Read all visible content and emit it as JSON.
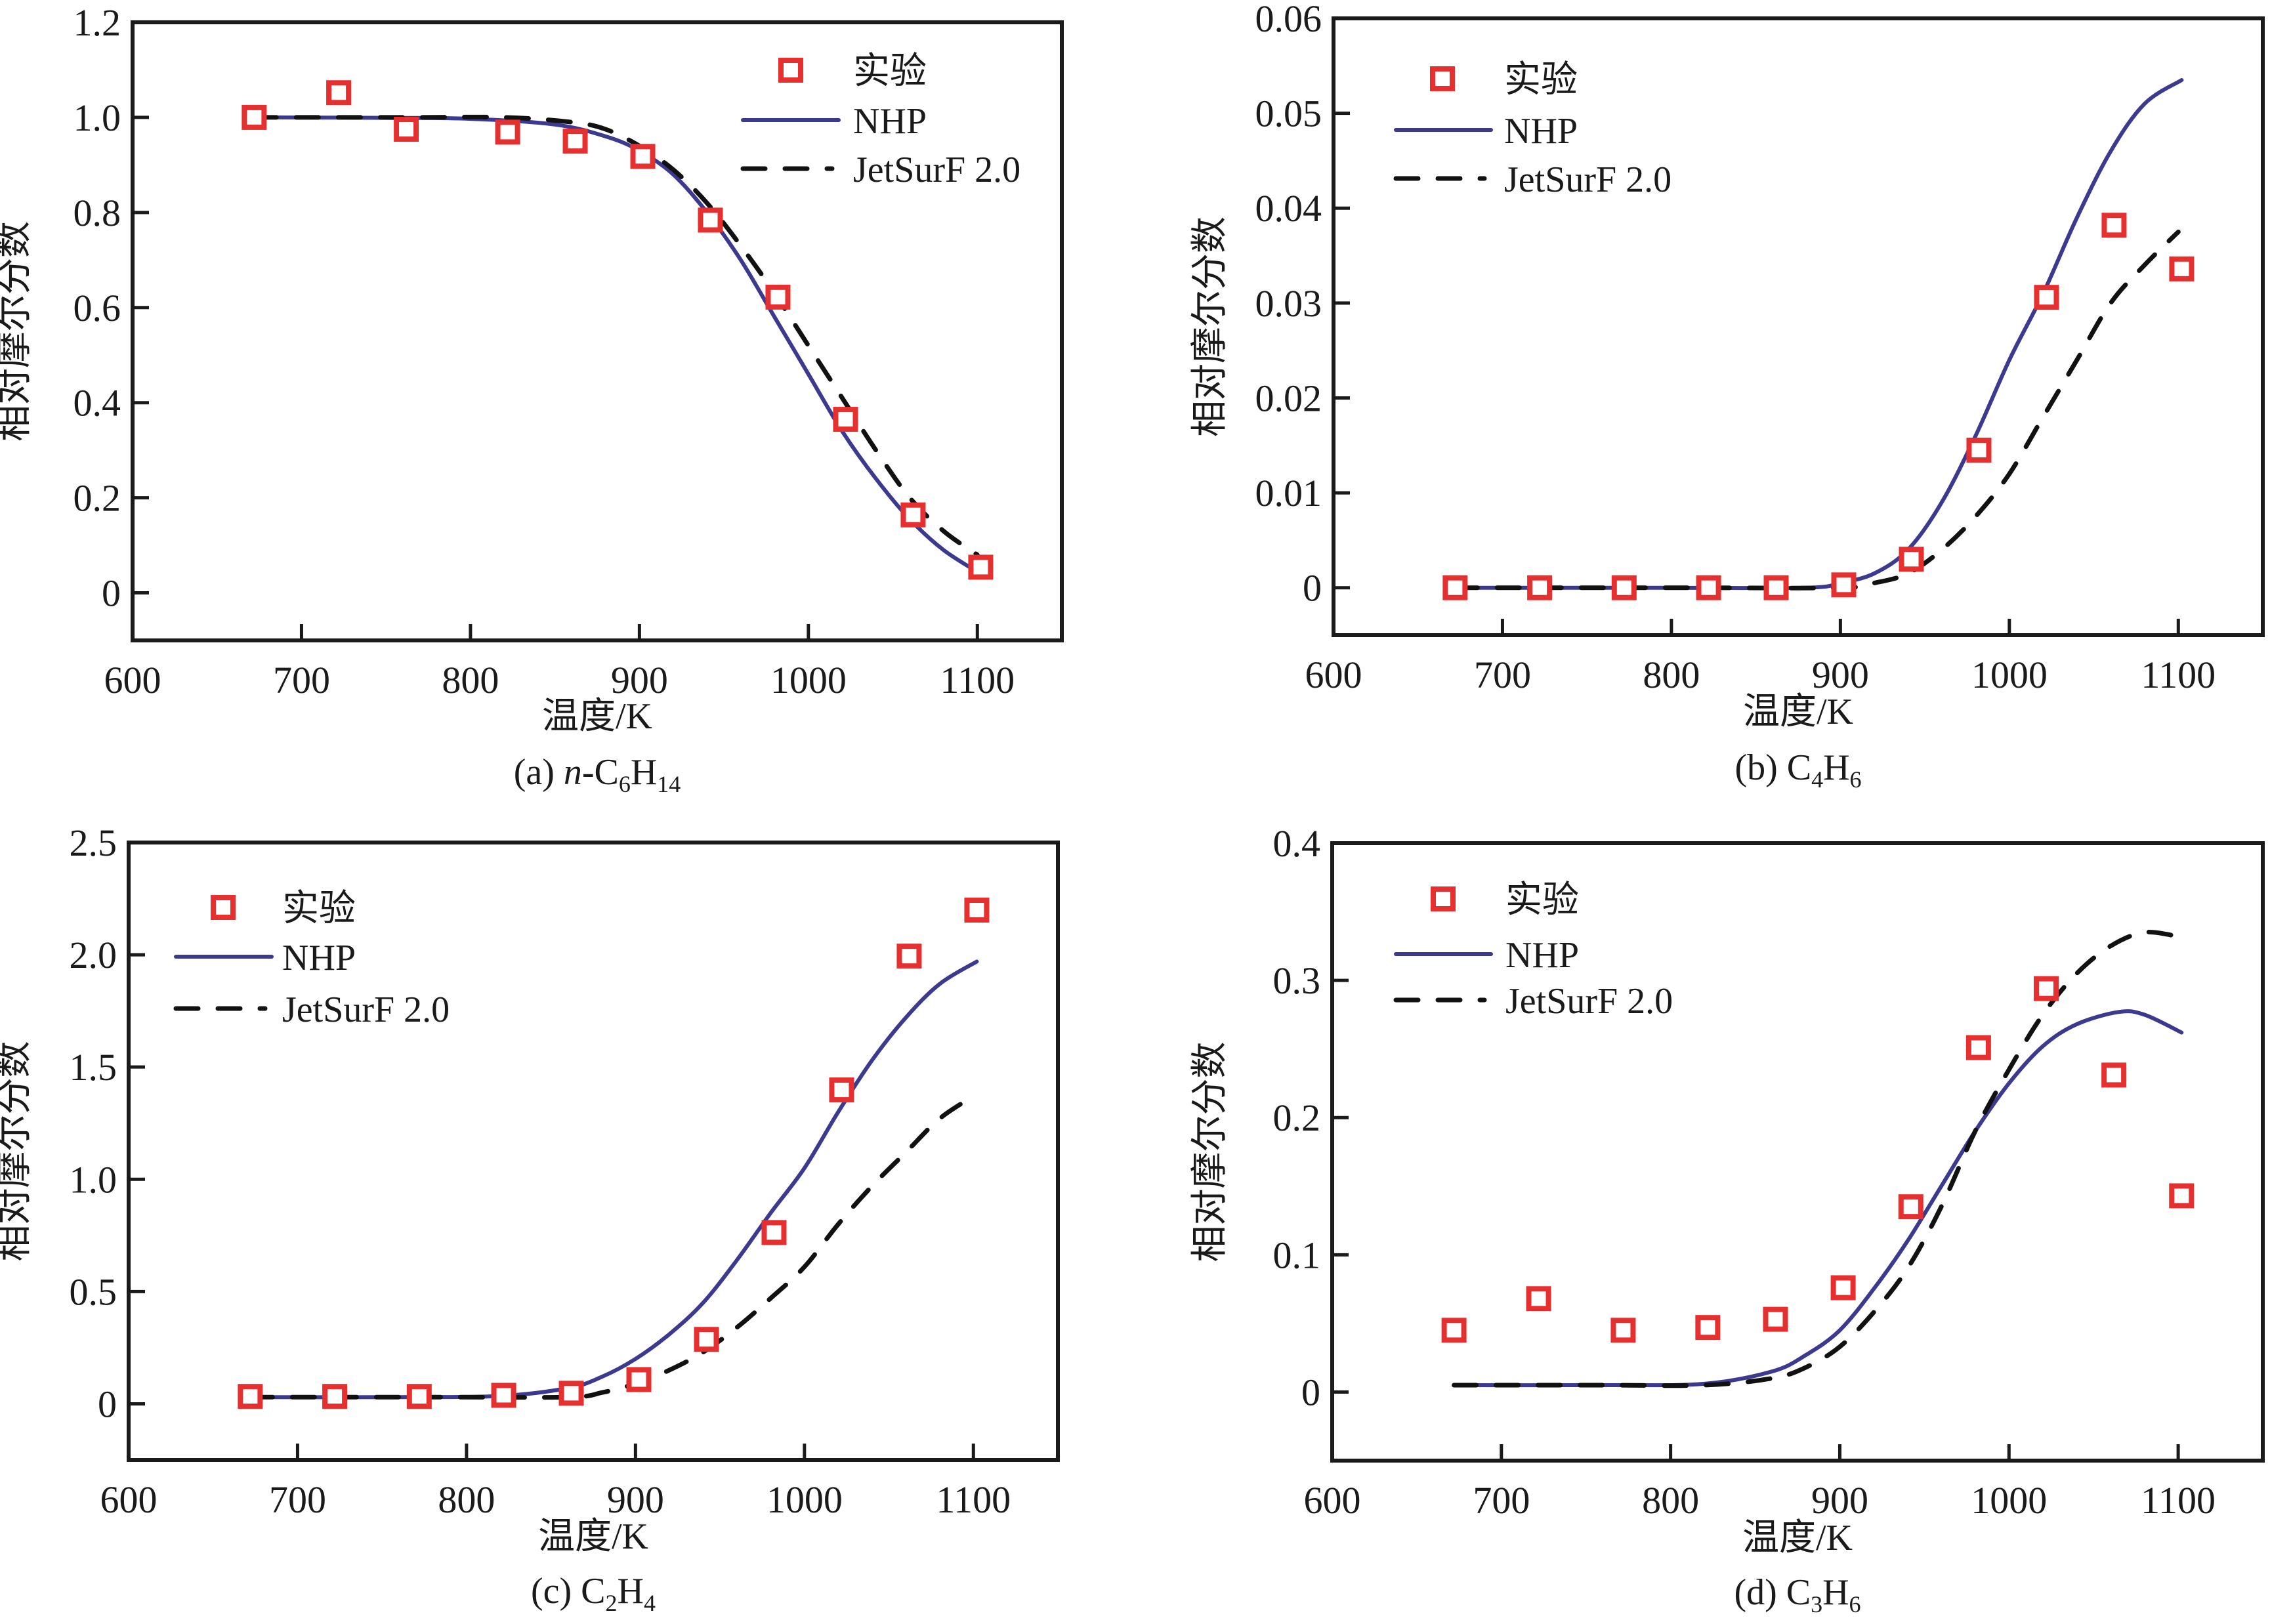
{
  "figure": {
    "colors": {
      "experiment": "#e63030",
      "nhp": "#3b3a8f",
      "jetsurf": "#111111"
    }
  },
  "chart_data": [
    {
      "id": "a",
      "type": "line",
      "caption": {
        "prefix": "(a) ",
        "italic": "n",
        "formula": [
          [
            "-C",
            ""
          ],
          [
            "",
            "6"
          ],
          [
            "H",
            ""
          ],
          [
            "",
            "14"
          ]
        ]
      },
      "xlabel": "温度/K",
      "ylabel": "相对摩尔分数",
      "xlim": [
        600,
        1150
      ],
      "ylim": [
        -0.1,
        1.2
      ],
      "xticks": [
        600,
        700,
        800,
        900,
        1000,
        1100
      ],
      "yticks": [
        0,
        0.2,
        0.4,
        0.6,
        0.8,
        1.0,
        1.2
      ],
      "ytick_labels": [
        "0",
        "0.2",
        "0.4",
        "0.6",
        "0.8",
        "1.0",
        "1.2"
      ],
      "grid": false,
      "legend": {
        "position": "top-right",
        "entries": [
          "实验",
          "NHP",
          "JetSurF 2.0"
        ]
      },
      "series": [
        {
          "name": "实验",
          "kind": "scatter",
          "x": [
            672,
            722,
            762,
            822,
            862,
            902,
            942,
            982,
            1022,
            1062,
            1102
          ],
          "y": [
            1.0,
            1.052,
            0.975,
            0.969,
            0.95,
            0.918,
            0.784,
            0.622,
            0.365,
            0.164,
            0.054
          ]
        },
        {
          "name": "NHP",
          "kind": "line",
          "x": [
            672,
            750,
            800,
            850,
            880,
            900,
            920,
            940,
            960,
            980,
            1000,
            1020,
            1040,
            1060,
            1080,
            1102
          ],
          "y": [
            1.0,
            0.999,
            0.997,
            0.985,
            0.96,
            0.93,
            0.88,
            0.8,
            0.7,
            0.58,
            0.46,
            0.34,
            0.24,
            0.155,
            0.09,
            0.04
          ]
        },
        {
          "name": "JetSurF 2.0",
          "kind": "dashed",
          "x": [
            672,
            760,
            820,
            860,
            880,
            900,
            920,
            940,
            960,
            980,
            1000,
            1020,
            1040,
            1060,
            1080,
            1100
          ],
          "y": [
            1.0,
            1.0,
            1.0,
            0.99,
            0.975,
            0.94,
            0.89,
            0.82,
            0.73,
            0.63,
            0.52,
            0.41,
            0.3,
            0.2,
            0.13,
            0.08
          ]
        }
      ]
    },
    {
      "id": "b",
      "type": "line",
      "caption": {
        "prefix": "(b) ",
        "italic": "",
        "formula": [
          [
            "C",
            ""
          ],
          [
            "",
            "4"
          ],
          [
            "H",
            ""
          ],
          [
            "",
            "6"
          ]
        ]
      },
      "xlabel": "温度/K",
      "ylabel": "相对摩尔分数",
      "xlim": [
        600,
        1150
      ],
      "ylim": [
        -0.005,
        0.06
      ],
      "xticks": [
        600,
        700,
        800,
        900,
        1000,
        1100
      ],
      "yticks": [
        0,
        0.01,
        0.02,
        0.03,
        0.04,
        0.05,
        0.06
      ],
      "ytick_labels": [
        "0",
        "0.01",
        "0.02",
        "0.03",
        "0.04",
        "0.05",
        "0.06"
      ],
      "grid": false,
      "legend": {
        "position": "top-left",
        "entries": [
          "实验",
          "NHP",
          "JetSurF 2.0"
        ]
      },
      "series": [
        {
          "name": "实验",
          "kind": "scatter",
          "x": [
            672,
            722,
            772,
            822,
            862,
            902,
            942,
            982,
            1022,
            1062,
            1102
          ],
          "y": [
            0,
            0,
            0,
            0,
            0,
            0.0003,
            0.003,
            0.0145,
            0.0306,
            0.0382,
            0.0336
          ]
        },
        {
          "name": "NHP",
          "kind": "line",
          "x": [
            672,
            800,
            880,
            900,
            920,
            940,
            960,
            980,
            1000,
            1020,
            1040,
            1060,
            1080,
            1102
          ],
          "y": [
            0,
            0,
            0,
            0.0005,
            0.0015,
            0.004,
            0.009,
            0.016,
            0.024,
            0.031,
            0.039,
            0.046,
            0.051,
            0.0535
          ]
        },
        {
          "name": "JetSurF 2.0",
          "kind": "dashed",
          "x": [
            672,
            800,
            900,
            920,
            940,
            960,
            980,
            1000,
            1020,
            1040,
            1060,
            1080,
            1100
          ],
          "y": [
            0,
            0,
            0,
            0.0005,
            0.0015,
            0.004,
            0.0075,
            0.012,
            0.018,
            0.024,
            0.03,
            0.034,
            0.0375
          ]
        }
      ]
    },
    {
      "id": "c",
      "type": "line",
      "caption": {
        "prefix": "(c) ",
        "italic": "",
        "formula": [
          [
            "C",
            ""
          ],
          [
            "",
            "2"
          ],
          [
            "H",
            ""
          ],
          [
            "",
            "4"
          ]
        ]
      },
      "xlabel": "温度/K",
      "ylabel": "相对摩尔分数",
      "xlim": [
        600,
        1150
      ],
      "ylim": [
        -0.25,
        2.5
      ],
      "xticks": [
        600,
        700,
        800,
        900,
        1000,
        1100
      ],
      "yticks": [
        0,
        0.5,
        1.0,
        1.5,
        2.0,
        2.5
      ],
      "ytick_labels": [
        "0",
        "0.5",
        "1.0",
        "1.5",
        "2.0",
        "2.5"
      ],
      "grid": false,
      "legend": {
        "position": "top-left",
        "entries": [
          "实验",
          "NHP",
          "JetSurF 2.0"
        ]
      },
      "series": [
        {
          "name": "实验",
          "kind": "scatter",
          "x": [
            672,
            722,
            772,
            822,
            862,
            902,
            942,
            982,
            1022,
            1062,
            1102
          ],
          "y": [
            0.033,
            0.033,
            0.033,
            0.038,
            0.047,
            0.108,
            0.287,
            0.763,
            1.398,
            1.994,
            2.199
          ]
        },
        {
          "name": "NHP",
          "kind": "line",
          "x": [
            672,
            760,
            820,
            860,
            880,
            900,
            920,
            940,
            960,
            980,
            1000,
            1020,
            1040,
            1060,
            1080,
            1102
          ],
          "y": [
            0.03,
            0.03,
            0.035,
            0.07,
            0.12,
            0.2,
            0.31,
            0.45,
            0.64,
            0.85,
            1.05,
            1.3,
            1.53,
            1.72,
            1.87,
            1.97
          ]
        },
        {
          "name": "JetSurF 2.0",
          "kind": "dashed",
          "x": [
            672,
            780,
            860,
            880,
            900,
            920,
            940,
            960,
            980,
            1000,
            1020,
            1040,
            1060,
            1080,
            1100
          ],
          "y": [
            0.03,
            0.03,
            0.03,
            0.05,
            0.09,
            0.15,
            0.23,
            0.34,
            0.47,
            0.61,
            0.8,
            0.97,
            1.12,
            1.27,
            1.37
          ]
        }
      ]
    },
    {
      "id": "d",
      "type": "line",
      "caption": {
        "prefix": "(d) ",
        "italic": "",
        "formula": [
          [
            "C",
            ""
          ],
          [
            "",
            "3"
          ],
          [
            "H",
            ""
          ],
          [
            "",
            "6"
          ]
        ]
      },
      "xlabel": "温度/K",
      "ylabel": "相对摩尔分数",
      "xlim": [
        600,
        1150
      ],
      "ylim": [
        -0.05,
        0.4
      ],
      "xticks": [
        600,
        700,
        800,
        900,
        1000,
        1100
      ],
      "yticks": [
        0,
        0.1,
        0.2,
        0.3,
        0.4
      ],
      "ytick_labels": [
        "0",
        "0.1",
        "0.2",
        "0.3",
        "0.4"
      ],
      "grid": false,
      "legend": {
        "position": "top-left",
        "entries": [
          "实验",
          "NHP",
          "JetSurF 2.0"
        ]
      },
      "series": [
        {
          "name": "实验",
          "kind": "scatter",
          "x": [
            672,
            722,
            772,
            822,
            862,
            902,
            942,
            982,
            1022,
            1062,
            1102
          ],
          "y": [
            0.045,
            0.068,
            0.045,
            0.047,
            0.053,
            0.076,
            0.135,
            0.251,
            0.294,
            0.231,
            0.143
          ]
        },
        {
          "name": "NHP",
          "kind": "line",
          "x": [
            672,
            760,
            820,
            860,
            880,
            900,
            920,
            940,
            960,
            980,
            1000,
            1020,
            1040,
            1065,
            1080,
            1102
          ],
          "y": [
            0.005,
            0.005,
            0.006,
            0.015,
            0.027,
            0.045,
            0.075,
            0.11,
            0.15,
            0.19,
            0.225,
            0.252,
            0.268,
            0.277,
            0.275,
            0.262
          ]
        },
        {
          "name": "JetSurF 2.0",
          "kind": "dashed",
          "x": [
            672,
            760,
            820,
            860,
            880,
            900,
            920,
            940,
            960,
            980,
            1000,
            1020,
            1040,
            1060,
            1080,
            1100
          ],
          "y": [
            0.005,
            0.005,
            0.005,
            0.01,
            0.018,
            0.033,
            0.058,
            0.09,
            0.135,
            0.19,
            0.235,
            0.275,
            0.305,
            0.325,
            0.335,
            0.332
          ]
        }
      ]
    }
  ]
}
